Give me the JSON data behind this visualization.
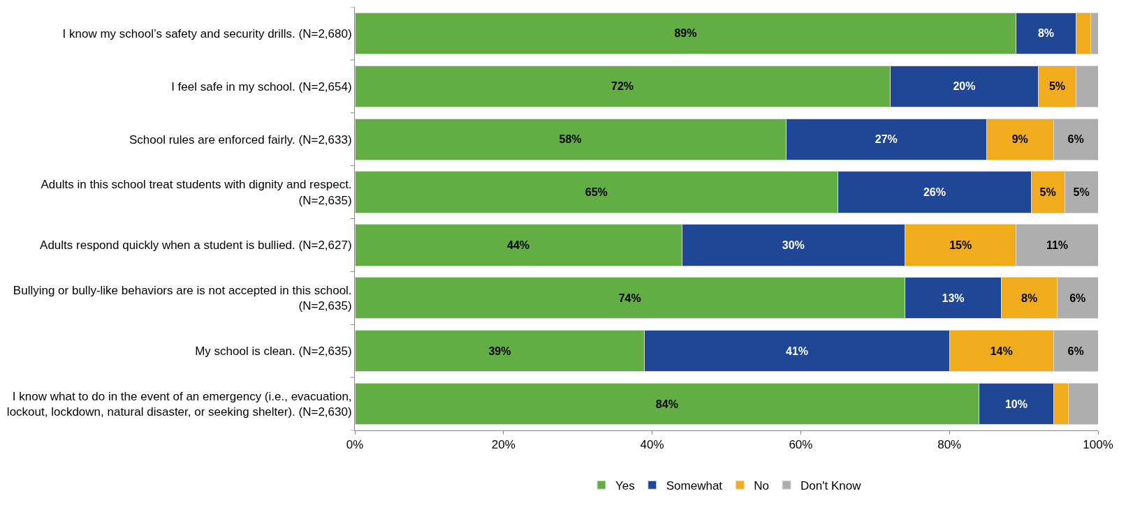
{
  "chart_data": {
    "type": "bar",
    "orientation": "horizontal",
    "stacked": true,
    "categories": [
      "I know my school’s safety and security drills. (N=2,680)",
      "I feel safe in my school. (N=2,654)",
      "School rules are enforced fairly. (N=2,633)",
      "Adults in this school treat students with dignity and respect.\n(N=2,635)",
      "Adults respond quickly when a student is bullied. (N=2,627)",
      "Bullying or bully-like behaviors are is not accepted in this school.\n(N=2,635)",
      "My school is clean. (N=2,635)",
      "I know what to do in the event of an emergency (i.e., evacuation,\nlockout, lockdown, natural disaster, or seeking shelter). (N=2,630)"
    ],
    "series": [
      {
        "name": "Yes",
        "color": "#62ad44",
        "values": [
          89,
          72,
          58,
          65,
          44,
          74,
          39,
          84
        ],
        "value_labels": [
          "89%",
          "72%",
          "58%",
          "65%",
          "44%",
          "74%",
          "39%",
          "84%"
        ]
      },
      {
        "name": "Somewhat",
        "color": "#1f4795",
        "values": [
          8,
          20,
          27,
          26,
          30,
          13,
          41,
          10
        ],
        "value_labels": [
          "8%",
          "20%",
          "27%",
          "26%",
          "30%",
          "13%",
          "41%",
          "10%"
        ]
      },
      {
        "name": "No",
        "color": "#f0ac1c",
        "values": [
          2,
          5,
          9,
          4.5,
          15,
          7.5,
          14,
          2
        ],
        "value_labels": [
          null,
          "5%",
          "9%",
          "5%",
          "15%",
          "8%",
          "14%",
          null
        ]
      },
      {
        "name": "Don't Know",
        "color": "#aeaeae",
        "values": [
          1,
          3,
          6,
          4.5,
          11,
          5.5,
          6,
          4
        ],
        "value_labels": [
          null,
          null,
          "6%",
          "5%",
          "11%",
          "6%",
          "6%",
          null
        ]
      }
    ],
    "xlim": [
      0,
      100
    ],
    "xticks": [
      {
        "value": 0,
        "label": "0%"
      },
      {
        "value": 20,
        "label": "20%"
      },
      {
        "value": 40,
        "label": "40%"
      },
      {
        "value": 60,
        "label": "60%"
      },
      {
        "value": 80,
        "label": "80%"
      },
      {
        "value": 100,
        "label": "100%"
      }
    ],
    "legend": "bottom"
  }
}
